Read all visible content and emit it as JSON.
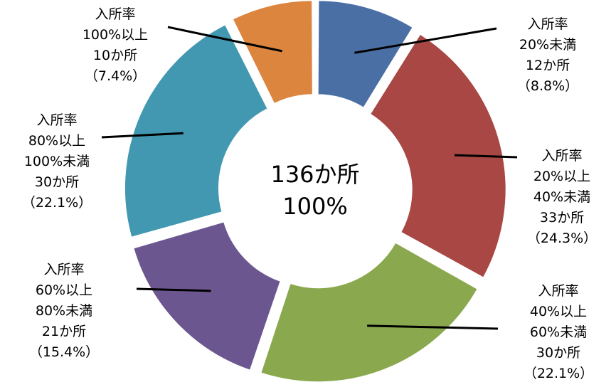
{
  "chart_data": {
    "type": "pie",
    "style": "donut",
    "title": "",
    "center_label": {
      "line1": "136か所",
      "line2": "100%"
    },
    "total": 136,
    "slices": [
      {
        "category": "入所率20%未満",
        "value": 12,
        "percent": 8.8,
        "color": "#4A6FA5",
        "label_lines": [
          "入所率",
          "20%未満",
          "12か所",
          "（8.8%）"
        ]
      },
      {
        "category": "入所率20%以上40%未満",
        "value": 33,
        "percent": 24.3,
        "color": "#A84744",
        "label_lines": [
          "入所率",
          "20%以上",
          "40%未満",
          "33か所",
          "（24.3%）"
        ]
      },
      {
        "category": "入所率40%以上60%未満",
        "value": 30,
        "percent": 22.1,
        "color": "#8AA84E",
        "label_lines": [
          "入所率",
          "40%以上",
          "60%未満",
          "30か所",
          "（22.1%）"
        ]
      },
      {
        "category": "入所率60%以上80%未満",
        "value": 21,
        "percent": 15.4,
        "color": "#6C5690",
        "label_lines": [
          "入所率",
          "60%以上",
          "80%未満",
          "21か所",
          "（15.4%）"
        ]
      },
      {
        "category": "入所率80%以上100%未満",
        "value": 30,
        "percent": 22.1,
        "color": "#4298B0",
        "label_lines": [
          "入所率",
          "80%以上",
          "100%未満",
          "30か所",
          "（22.1%）"
        ]
      },
      {
        "category": "入所率100%以上",
        "value": 10,
        "percent": 7.4,
        "color": "#DC853E",
        "label_lines": [
          "入所率",
          "100%以上",
          "10か所",
          "（7.4%）"
        ]
      }
    ]
  }
}
